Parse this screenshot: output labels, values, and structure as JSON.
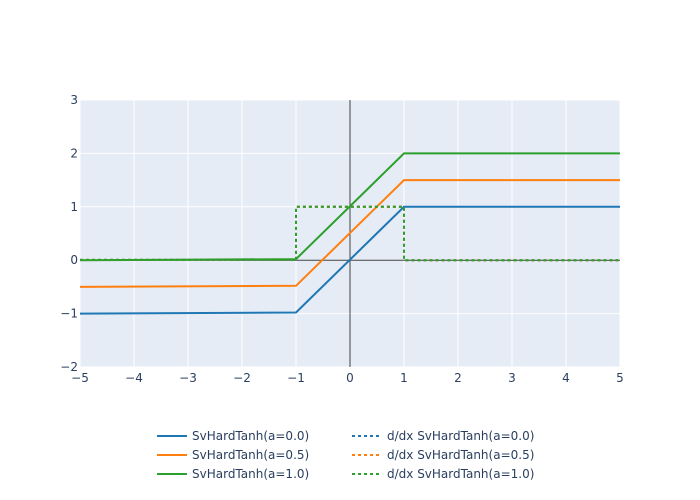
{
  "chart_data": {
    "type": "line",
    "title": "",
    "xlabel": "",
    "ylabel": "",
    "xlim": [
      -5,
      5
    ],
    "ylim": [
      -2,
      3
    ],
    "xticks": [
      -5,
      -4,
      -3,
      -2,
      -1,
      0,
      1,
      2,
      3,
      4,
      5
    ],
    "yticks": [
      -2,
      -1,
      0,
      1,
      2,
      3
    ],
    "xtick_labels": [
      "−5",
      "−4",
      "−3",
      "−2",
      "−1",
      "0",
      "1",
      "2",
      "3",
      "4",
      "5"
    ],
    "ytick_labels": [
      "−2",
      "−1",
      "0",
      "1",
      "2",
      "3"
    ],
    "grid": true,
    "zero_lines": true,
    "legend_position": "bottom",
    "series": [
      {
        "name": "SvHardTanh(a=0.0)",
        "color": "#1f77b4",
        "dash": "solid",
        "x": [
          -5,
          -1,
          1,
          5
        ],
        "y": [
          -1,
          -0.98,
          1,
          1
        ]
      },
      {
        "name": "SvHardTanh(a=0.5)",
        "color": "#ff7f0e",
        "dash": "solid",
        "x": [
          -5,
          -1,
          1,
          5
        ],
        "y": [
          -0.5,
          -0.48,
          1.5,
          1.5
        ]
      },
      {
        "name": "SvHardTanh(a=1.0)",
        "color": "#2ca02c",
        "dash": "solid",
        "x": [
          -5,
          -1,
          1,
          5
        ],
        "y": [
          0,
          0.02,
          2,
          2
        ]
      },
      {
        "name": "d/dx SvHardTanh(a=0.0)",
        "color": "#1f77b4",
        "dash": "dot",
        "x": [
          -5,
          -1,
          -1,
          1,
          1,
          5
        ],
        "y": [
          0.005,
          0.005,
          1,
          1,
          0,
          0
        ]
      },
      {
        "name": "d/dx SvHardTanh(a=0.5)",
        "color": "#ff7f0e",
        "dash": "dot",
        "x": [
          -5,
          -1,
          -1,
          1,
          1,
          5
        ],
        "y": [
          0.005,
          0.005,
          1,
          1,
          0,
          0
        ]
      },
      {
        "name": "d/dx SvHardTanh(a=1.0)",
        "color": "#2ca02c",
        "dash": "dot",
        "x": [
          -5,
          -1,
          -1,
          1,
          1,
          5
        ],
        "y": [
          0.005,
          0.005,
          1,
          1,
          0,
          0
        ]
      }
    ]
  }
}
